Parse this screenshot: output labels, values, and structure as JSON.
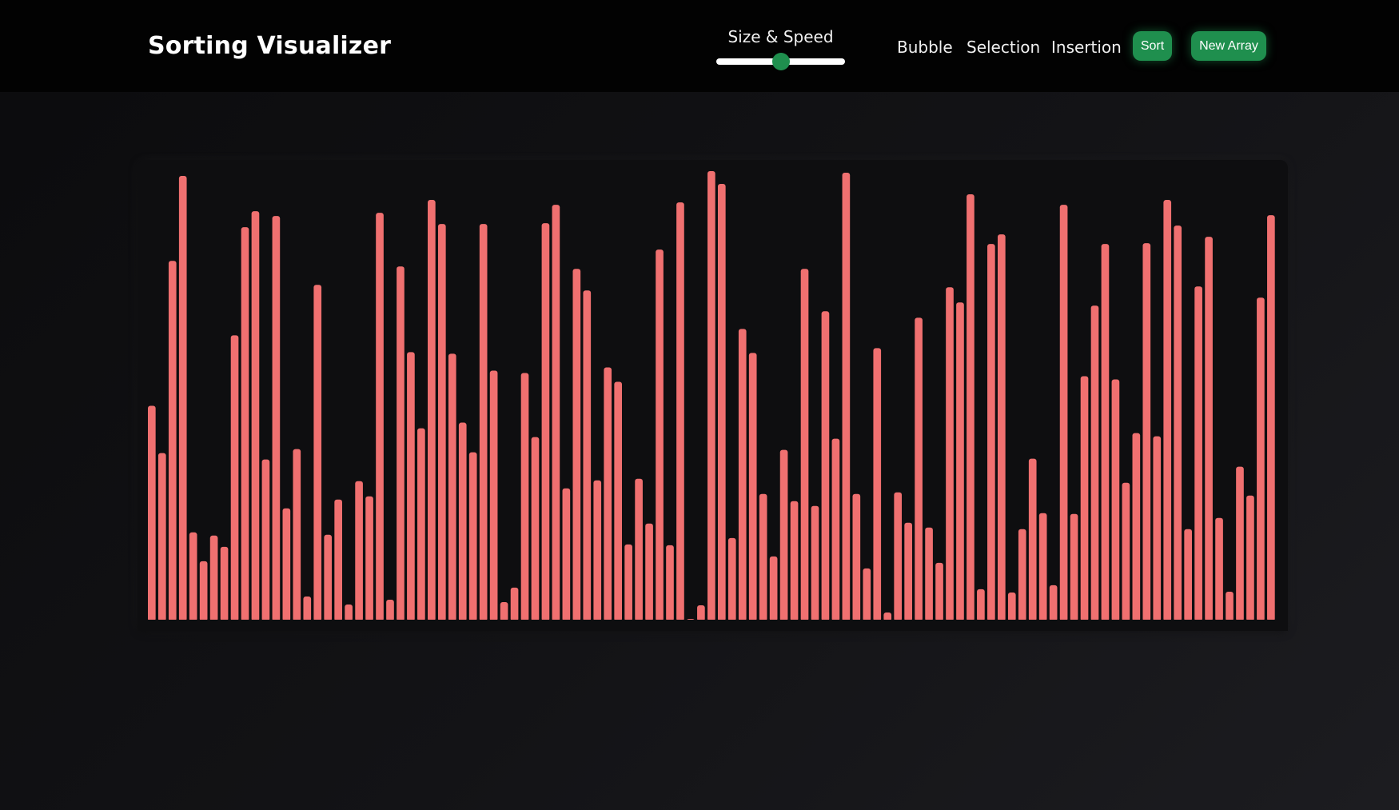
{
  "header": {
    "title": "Sorting Visualizer",
    "slider": {
      "label": "Size & Speed",
      "value_fraction": 0.5
    },
    "nav": [
      {
        "label": "Bubble"
      },
      {
        "label": "Selection"
      },
      {
        "label": "Insertion"
      }
    ],
    "buttons": {
      "sort": "Sort",
      "new_array": "New Array"
    }
  },
  "colors": {
    "bar": "#f07070",
    "accent": "#1f8f4e"
  },
  "chart_data": {
    "type": "bar",
    "ylim": [
      0,
      560
    ],
    "values": [
      267,
      208,
      448,
      554,
      109,
      73,
      105,
      91,
      355,
      490,
      510,
      200,
      504,
      139,
      213,
      29,
      418,
      106,
      150,
      19,
      173,
      154,
      508,
      25,
      441,
      334,
      239,
      524,
      494,
      332,
      246,
      209,
      494,
      311,
      22,
      40,
      308,
      228,
      495,
      518,
      164,
      438,
      411,
      174,
      315,
      297,
      94,
      176,
      120,
      462,
      93,
      521,
      1,
      18,
      560,
      544,
      102,
      363,
      333,
      157,
      79,
      212,
      148,
      438,
      142,
      385,
      226,
      558,
      157,
      64,
      339,
      9,
      159,
      121,
      377,
      115,
      71,
      415,
      396,
      531,
      38,
      469,
      481,
      34,
      113,
      201,
      133,
      43,
      518,
      132,
      304,
      392,
      469,
      300,
      171,
      233,
      470,
      229,
      524,
      492,
      113,
      416,
      478,
      127,
      35,
      191,
      155,
      402,
      505
    ]
  }
}
